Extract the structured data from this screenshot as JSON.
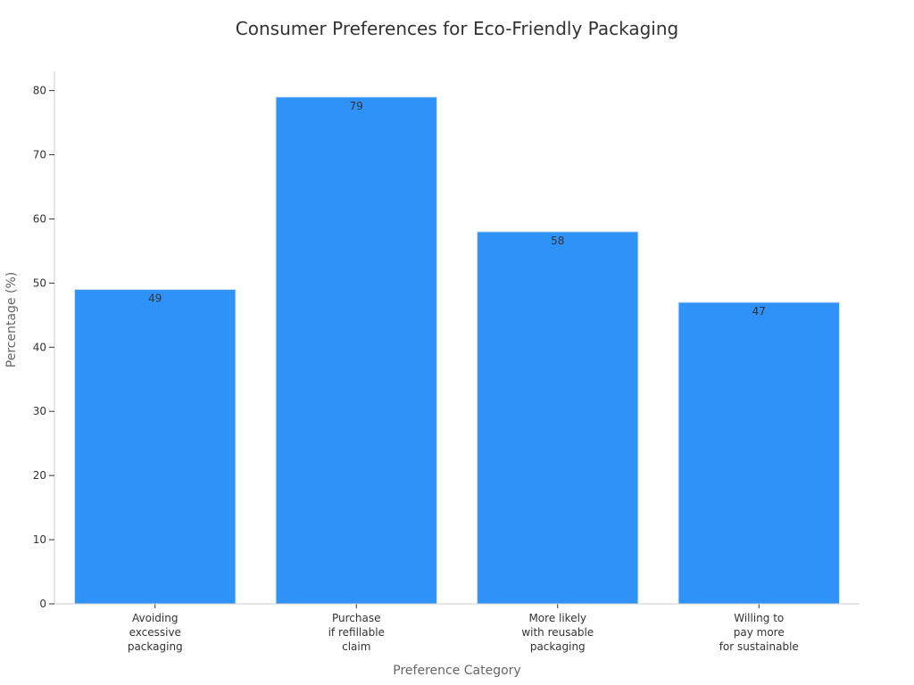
{
  "chart_data": {
    "type": "bar",
    "title": "Consumer Preferences for Eco-Friendly Packaging",
    "xlabel": "Preference Category",
    "ylabel": "Percentage (%)",
    "categories": [
      [
        "Avoiding",
        "excessive",
        "packaging"
      ],
      [
        "Purchase",
        "if refillable",
        "claim"
      ],
      [
        "More likely",
        "with reusable",
        "packaging"
      ],
      [
        "Willing to",
        "pay more",
        "for sustainable"
      ]
    ],
    "values": [
      49,
      79,
      58,
      47
    ],
    "data_labels": [
      "49",
      "79",
      "58",
      "47"
    ],
    "ylim": [
      0,
      83
    ],
    "yticks": [
      0,
      10,
      20,
      30,
      40,
      50,
      60,
      70,
      80
    ],
    "grid": false,
    "legend": "none",
    "colors": {
      "bar": "#2F92F8",
      "bar_edge": "#CFE3F7",
      "axis": "#CCCCCC",
      "text": "#333333",
      "label": "#666666"
    }
  }
}
